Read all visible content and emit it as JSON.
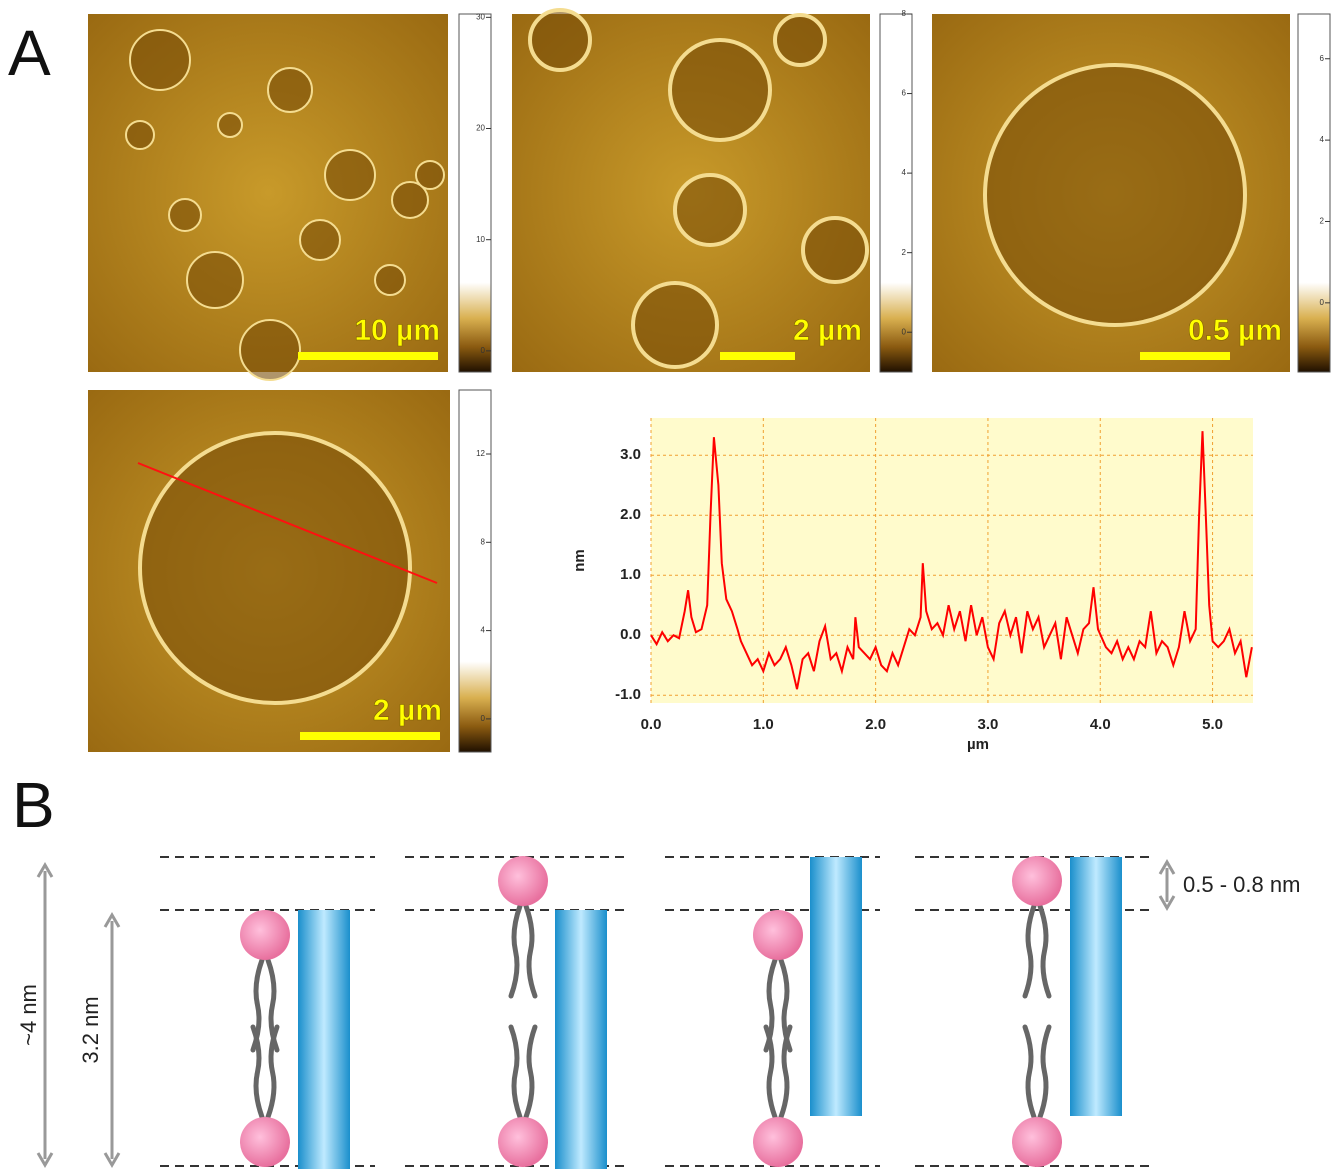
{
  "panel_a": {
    "label": "A",
    "images": [
      {
        "scale_bar": "10 µm",
        "colorbar": {
          "lim": [
            -1.9,
            30.3
          ],
          "ticks": [
            30,
            20,
            10,
            0
          ]
        }
      },
      {
        "scale_bar": "2 µm",
        "colorbar": {
          "lim": [
            -1,
            8
          ],
          "ticks": [
            8,
            6,
            4,
            2,
            0
          ]
        }
      },
      {
        "scale_bar": "0.5 µm",
        "colorbar": {
          "lim": [
            -1.7,
            7.1
          ],
          "ticks": [
            6,
            4,
            2,
            0
          ]
        }
      },
      {
        "scale_bar": "2 µm",
        "colorbar": {
          "lim": [
            -1.5,
            14.9
          ],
          "ticks": [
            12,
            8,
            4,
            0
          ]
        }
      }
    ]
  },
  "chart_data": {
    "type": "line",
    "x_label": "µm",
    "y_label": "nm",
    "color": "#ff0000",
    "background": "#fffbcc",
    "grid": true,
    "xlim": [
      0,
      5.36
    ],
    "ylim": [
      -1.13,
      3.62
    ],
    "xticks": [
      {
        "value": 0,
        "label": "0.0"
      },
      {
        "value": 1,
        "label": "1.0"
      },
      {
        "value": 2,
        "label": "2.0"
      },
      {
        "value": 3,
        "label": "3.0"
      },
      {
        "value": 4,
        "label": "4.0"
      },
      {
        "value": 5,
        "label": "5.0"
      }
    ],
    "yticks": [
      {
        "value": -1,
        "label": "-1.0"
      },
      {
        "value": 0,
        "label": "0.0"
      },
      {
        "value": 1,
        "label": "1.0"
      },
      {
        "value": 2,
        "label": "2.0"
      },
      {
        "value": 3,
        "label": "3.0"
      }
    ],
    "x": [
      0,
      0.05,
      0.1,
      0.15,
      0.2,
      0.25,
      0.3,
      0.33,
      0.36,
      0.4,
      0.45,
      0.5,
      0.53,
      0.56,
      0.6,
      0.63,
      0.67,
      0.72,
      0.77,
      0.8,
      0.85,
      0.9,
      0.95,
      1,
      1.05,
      1.1,
      1.15,
      1.2,
      1.25,
      1.3,
      1.35,
      1.4,
      1.45,
      1.5,
      1.55,
      1.6,
      1.65,
      1.7,
      1.75,
      1.8,
      1.82,
      1.85,
      1.9,
      1.95,
      2,
      2.05,
      2.1,
      2.15,
      2.2,
      2.25,
      2.3,
      2.35,
      2.4,
      2.42,
      2.45,
      2.5,
      2.55,
      2.6,
      2.65,
      2.7,
      2.75,
      2.8,
      2.85,
      2.9,
      2.95,
      3,
      3.05,
      3.1,
      3.15,
      3.2,
      3.25,
      3.3,
      3.35,
      3.4,
      3.45,
      3.5,
      3.55,
      3.6,
      3.65,
      3.7,
      3.75,
      3.8,
      3.85,
      3.9,
      3.94,
      3.98,
      4.05,
      4.1,
      4.15,
      4.2,
      4.25,
      4.3,
      4.35,
      4.4,
      4.45,
      4.5,
      4.55,
      4.6,
      4.65,
      4.7,
      4.75,
      4.8,
      4.85,
      4.88,
      4.91,
      4.94,
      4.97,
      5,
      5.05,
      5.1,
      5.15,
      5.2,
      5.25,
      5.3,
      5.35
    ],
    "values": [
      0,
      -0.15,
      0.05,
      -0.1,
      0,
      -0.05,
      0.4,
      0.75,
      0.3,
      0.05,
      0.1,
      0.5,
      2,
      3.3,
      2.5,
      1.2,
      0.6,
      0.4,
      0.1,
      -0.1,
      -0.3,
      -0.5,
      -0.4,
      -0.6,
      -0.3,
      -0.5,
      -0.4,
      -0.2,
      -0.5,
      -0.9,
      -0.4,
      -0.3,
      -0.6,
      -0.1,
      0.15,
      -0.4,
      -0.3,
      -0.6,
      -0.2,
      -0.4,
      0.3,
      -0.2,
      -0.3,
      -0.4,
      -0.2,
      -0.5,
      -0.6,
      -0.3,
      -0.5,
      -0.2,
      0.1,
      0,
      0.3,
      1.2,
      0.4,
      0.1,
      0.2,
      0,
      0.5,
      0.1,
      0.4,
      -0.1,
      0.5,
      0,
      0.3,
      -0.2,
      -0.4,
      0.2,
      0.4,
      0,
      0.3,
      -0.3,
      0.4,
      0.1,
      0.3,
      -0.2,
      0,
      0.2,
      -0.4,
      0.3,
      0,
      -0.3,
      0.1,
      0.2,
      0.8,
      0.1,
      -0.2,
      -0.3,
      -0.1,
      -0.4,
      -0.2,
      -0.4,
      -0.1,
      -0.2,
      0.4,
      -0.3,
      -0.1,
      -0.2,
      -0.5,
      -0.2,
      0.4,
      -0.1,
      0.1,
      2,
      3.4,
      2,
      0.5,
      -0.1,
      -0.2,
      -0.1,
      0.1,
      -0.3,
      -0.1,
      -0.7,
      -0.2
    ]
  },
  "panel_b": {
    "label": "B",
    "total_thickness": "~4 nm",
    "core_thickness": "3.2 nm",
    "offset": "0.5 - 0.8 nm"
  }
}
